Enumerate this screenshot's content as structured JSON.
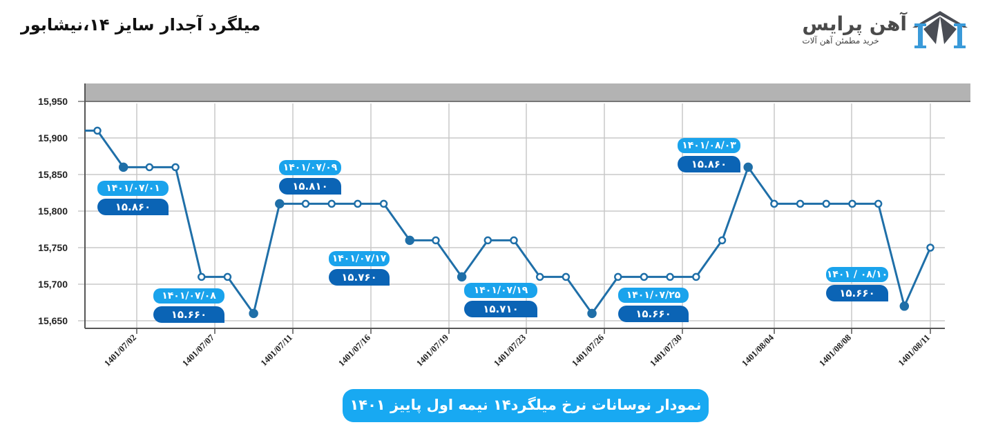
{
  "header": {
    "title": "میلگرد آجدار سایز ۱۴،نیشابور"
  },
  "logo": {
    "name": "آهن پرایس",
    "tagline": "خرید مطمئن آهن آلات",
    "icon": "building-logo-icon",
    "colors": {
      "blue": "#3a9ad9",
      "gray": "#4a4d55"
    }
  },
  "banner": {
    "text": "نمودار نوسانات نرخ میلگرد۱۴ نیمه اول پاییز  ۱۴۰۱"
  },
  "annotations": [
    {
      "date": "۱۴۰۱/۰۷/۰۱",
      "value": "۱۵.۸۶۰"
    },
    {
      "date": "۱۴۰۱/۰۷/۰۸",
      "value": "۱۵.۶۶۰"
    },
    {
      "date": "۱۴۰۱/۰۷/۰۹",
      "value": "۱۵.۸۱۰"
    },
    {
      "date": "۱۴۰۱/۰۷/۱۷",
      "value": "۱۵.۷۶۰"
    },
    {
      "date": "۱۴۰۱/۰۷/۱۹",
      "value": "۱۵.۷۱۰"
    },
    {
      "date": "۱۴۰۱/۰۷/۲۵",
      "value": "۱۵.۶۶۰"
    },
    {
      "date": "۱۴۰۱/۰۸/۰۳",
      "value": "۱۵.۸۶۰"
    },
    {
      "date": "۱۴۰۱ / ۰۸/۱۰",
      "value": "۱۵.۶۶۰"
    }
  ],
  "colors": {
    "line": "#1f6fa8",
    "date_label_bg": "#1aa3ec",
    "value_label_bg": "#0b64b5",
    "banner_bg": "#18a9f2",
    "header_bar": "#b3b3b3",
    "grid": "#c8c8c8"
  },
  "chart_data": {
    "type": "line",
    "title": "میلگرد آجدار سایز ۱۴،نیشابور",
    "subtitle": "نمودار نوسانات نرخ میلگرد۱۴ نیمه اول پاییز ۱۴۰۱",
    "xlabel": "",
    "ylabel": "",
    "ylim": [
      15650,
      15950
    ],
    "yticks": [
      "15,950",
      "15,900",
      "15,850",
      "15,800",
      "15,750",
      "15,700",
      "15,650"
    ],
    "xtick_labels": [
      "1401/07/02",
      "1401/07/07",
      "1401/07/11",
      "1401/07/16",
      "1401/07/19",
      "1401/07/23",
      "1401/07/26",
      "1401/07/30",
      "1401/08/04",
      "1401/08/08",
      "1401/08/11"
    ],
    "grid": true,
    "legend": null,
    "series": [
      {
        "name": "میلگرد ۱۴ نیشابور",
        "values": [
          15910,
          15860,
          15860,
          15860,
          15710,
          15710,
          15660,
          15810,
          15810,
          15810,
          15810,
          15810,
          15760,
          15760,
          15710,
          15760,
          15760,
          15710,
          15710,
          15660,
          15710,
          15710,
          15710,
          15710,
          15760,
          15860,
          15810,
          15810,
          15810,
          15810,
          15810,
          15670,
          15750
        ]
      }
    ]
  }
}
